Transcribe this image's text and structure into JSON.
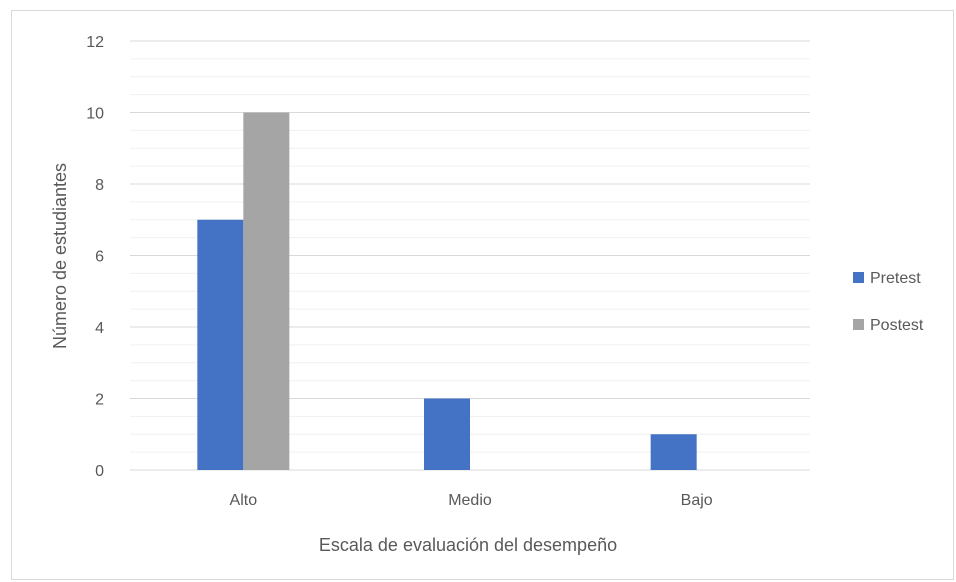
{
  "chart_data": {
    "type": "bar",
    "categories": [
      "Alto",
      "Medio",
      "Bajo"
    ],
    "series": [
      {
        "name": "Pretest",
        "values": [
          7,
          2,
          1
        ],
        "color": "#4472c4"
      },
      {
        "name": "Postest",
        "values": [
          10,
          0,
          0
        ],
        "color": "#a5a5a5"
      }
    ],
    "title": "",
    "xlabel": "Escala de evaluación del desempeño",
    "ylabel": "Número de estudiantes",
    "ylim": [
      0,
      12
    ],
    "yticks": [
      0,
      2,
      4,
      6,
      8,
      10,
      12
    ],
    "ytick_labels": [
      "0",
      "2",
      "4",
      "6",
      "8",
      "10",
      "12"
    ],
    "minor_gridlines": true,
    "grid": true,
    "legend_position": "right",
    "colors": {
      "gridline_major": "#d9d9d9",
      "gridline_minor": "#f0f0f0",
      "text": "#595959"
    }
  }
}
